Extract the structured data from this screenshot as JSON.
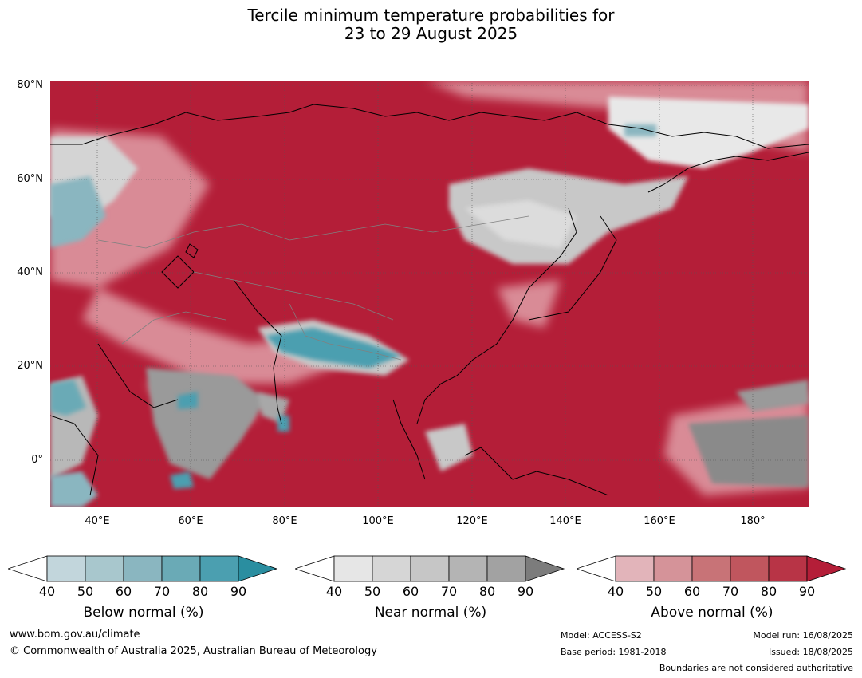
{
  "title": {
    "line1": "Tercile minimum temperature probabilities for",
    "line2": "23 to 29 August 2025"
  },
  "map": {
    "lat_labels": [
      "80°N",
      "60°N",
      "40°N",
      "20°N",
      "0°"
    ],
    "lon_labels": [
      "40°E",
      "60°E",
      "80°E",
      "100°E",
      "120°E",
      "140°E",
      "160°E",
      "180°"
    ],
    "colors": {
      "above_dominant": "#b41e38",
      "above_light": "#d98b96",
      "near": "#c8c8c8",
      "near_dark": "#8a8a8a",
      "below": "#4b9fb0",
      "coast": "#000000",
      "border": "#808080"
    }
  },
  "legends": [
    {
      "title": "Below normal (%)",
      "ticks": [
        "40",
        "50",
        "60",
        "70",
        "80",
        "90"
      ],
      "colors": [
        "#c2d6dc",
        "#a8c7cd",
        "#8ab6c0",
        "#6aaab6",
        "#4b9fb0",
        "#2a8ea0"
      ]
    },
    {
      "title": "Near normal (%)",
      "ticks": [
        "40",
        "50",
        "60",
        "70",
        "80",
        "90"
      ],
      "colors": [
        "#e6e6e6",
        "#d6d6d6",
        "#c6c6c6",
        "#b4b4b4",
        "#a2a2a2",
        "#7c7c7c"
      ]
    },
    {
      "title": "Above normal (%)",
      "ticks": [
        "40",
        "50",
        "60",
        "70",
        "80",
        "90"
      ],
      "colors": [
        "#e2b4ba",
        "#d59399",
        "#c87377",
        "#c0565e",
        "#b83446",
        "#b41e38"
      ]
    }
  ],
  "footer": {
    "website": "www.bom.gov.au/climate",
    "copyright": "© Commonwealth of Australia 2025, Australian Bureau of Meteorology",
    "model": "Model: ACCESS-S2",
    "base_period": "Base period: 1981-2018",
    "model_run": "Model run: 16/08/2025",
    "issued": "Issued: 18/08/2025",
    "boundaries": "Boundaries are not considered authoritative"
  }
}
